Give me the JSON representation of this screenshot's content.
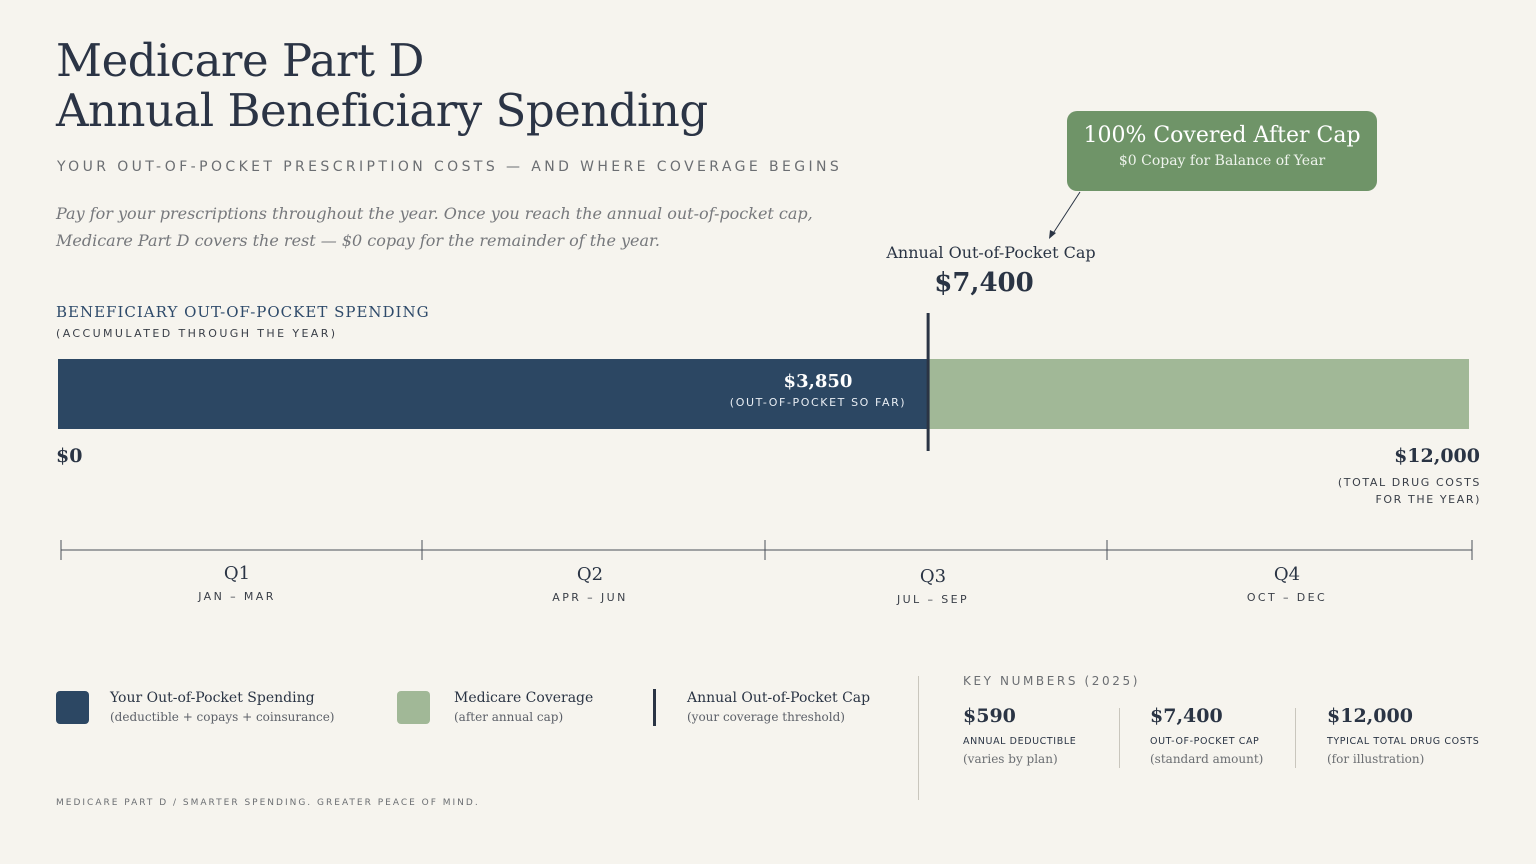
{
  "header": {
    "title_line1": "Medicare Part D",
    "title_line2": "Annual Beneficiary Spending",
    "subtitle": "YOUR OUT-OF-POCKET PRESCRIPTION COSTS — AND WHERE COVERAGE BEGINS",
    "intro_line1": "Pay for your prescriptions throughout the year. Once you reach the annual out-of-pocket cap,",
    "intro_line2": "Medicare Part D covers the rest — $0 copay for the remainder of the year."
  },
  "callout": {
    "title": "100% Covered After Cap",
    "subtitle": "$0 Copay for Balance of Year"
  },
  "section": {
    "title": "BENEFICIARY OUT-OF-POCKET SPENDING",
    "subtitle": "(ACCUMULATED THROUGH THE YEAR)"
  },
  "chart_data": {
    "type": "bar",
    "orientation": "horizontal",
    "xlim": [
      0,
      12000
    ],
    "segments": [
      {
        "name": "Your Out-of-Pocket Spending",
        "start": 0,
        "end": 7400,
        "color": "#2c4763"
      },
      {
        "name": "Medicare Coverage",
        "start": 7400,
        "end": 12000,
        "color": "#a1b897"
      }
    ],
    "bar_label": {
      "value": "$3,850",
      "note": "(OUT-OF-POCKET SO FAR)"
    },
    "cap": {
      "value": 7400,
      "label": "Annual Out-of-Pocket Cap",
      "display": "$7,400"
    },
    "axis_min_label": "$0",
    "axis_max_label": "$12,000",
    "axis_max_note_line1": "(TOTAL DRUG COSTS",
    "axis_max_note_line2": "FOR THE YEAR)",
    "quarters": [
      {
        "label": "Q1",
        "months": "JAN – MAR"
      },
      {
        "label": "Q2",
        "months": "APR – JUN"
      },
      {
        "label": "Q3",
        "months": "JUL – SEP"
      },
      {
        "label": "Q4",
        "months": "OCT – DEC"
      }
    ],
    "grid": false
  },
  "legend": [
    {
      "title": "Your Out-of-Pocket Spending",
      "note": "(deductible + copays + coinsurance)",
      "color": "#2c4763"
    },
    {
      "title": "Medicare Coverage",
      "note": "(after annual cap)",
      "color": "#a1b897"
    },
    {
      "title": "Annual Out-of-Pocket Cap",
      "note": "(your coverage threshold)",
      "color": "#2a3444"
    }
  ],
  "key_numbers": {
    "title": "KEY NUMBERS (2025)",
    "items": [
      {
        "value": "$590",
        "label": "ANNUAL DEDUCTIBLE",
        "note": "(varies by plan)"
      },
      {
        "value": "$7,400",
        "label": "OUT-OF-POCKET CAP",
        "note": "(standard amount)"
      },
      {
        "value": "$12,000",
        "label": "TYPICAL TOTAL DRUG COSTS",
        "note": "(for illustration)"
      }
    ]
  },
  "footer": "MEDICARE PART D  /  SMARTER SPENDING. GREATER PEACE OF MIND.",
  "colors": {
    "background": "#f6f4ee",
    "navy": "#2c4763",
    "sage": "#a1b897",
    "callout": "#6f9468",
    "ink": "#2a3444"
  }
}
